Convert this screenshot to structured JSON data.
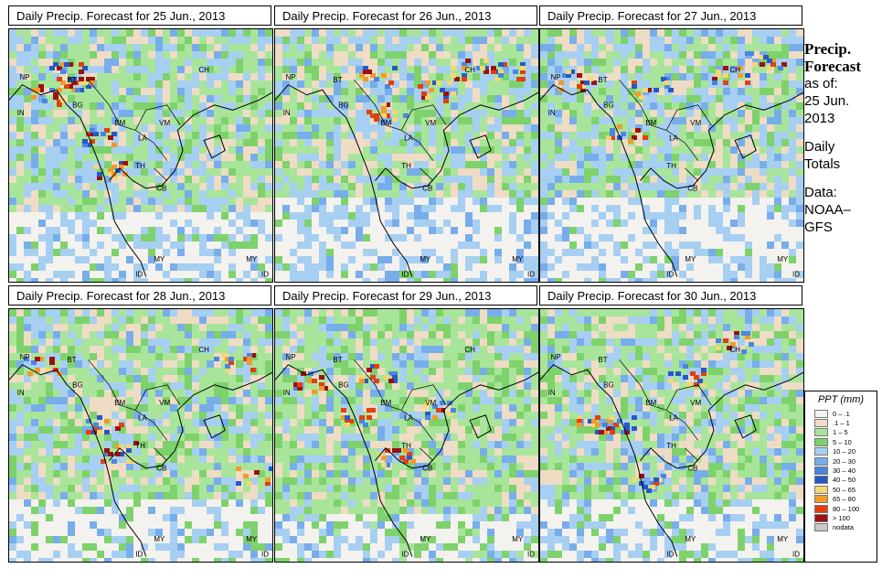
{
  "panels": [
    {
      "title": "Daily Precip. Forecast for  25 Jun., 2013",
      "heavy": [
        [
          0.25,
          0.22
        ],
        [
          0.33,
          0.42
        ],
        [
          0.38,
          0.55
        ],
        [
          0.15,
          0.25
        ],
        [
          0.22,
          0.16
        ]
      ],
      "wet": 0.55,
      "drySouth": 0.3
    },
    {
      "title": "Daily Precip. Forecast for  26 Jun., 2013",
      "heavy": [
        [
          0.72,
          0.15
        ],
        [
          0.88,
          0.16
        ],
        [
          0.38,
          0.18
        ],
        [
          0.42,
          0.32
        ],
        [
          0.6,
          0.24
        ]
      ],
      "wet": 0.5,
      "drySouth": 0.35
    },
    {
      "title": "Daily Precip. Forecast for  27 Jun., 2013",
      "heavy": [
        [
          0.72,
          0.18
        ],
        [
          0.85,
          0.12
        ],
        [
          0.12,
          0.2
        ],
        [
          0.42,
          0.22
        ],
        [
          0.32,
          0.42
        ]
      ],
      "wet": 0.5,
      "drySouth": 0.35
    },
    {
      "title": "Daily Precip. Forecast for  28 Jun., 2013",
      "heavy": [
        [
          0.85,
          0.2
        ],
        [
          0.35,
          0.45
        ],
        [
          0.4,
          0.56
        ],
        [
          0.12,
          0.22
        ],
        [
          0.93,
          0.65
        ]
      ],
      "wet": 0.62,
      "drySouth": 0.25
    },
    {
      "title": "Daily Precip. Forecast for  29 Jun., 2013",
      "heavy": [
        [
          0.3,
          0.42
        ],
        [
          0.45,
          0.58
        ],
        [
          0.12,
          0.28
        ],
        [
          0.38,
          0.25
        ],
        [
          0.6,
          0.4
        ]
      ],
      "wet": 0.7,
      "drySouth": 0.2
    },
    {
      "title": "Daily Precip. Forecast for  30 Jun., 2013",
      "heavy": [
        [
          0.2,
          0.45
        ],
        [
          0.28,
          0.45
        ],
        [
          0.55,
          0.25
        ],
        [
          0.72,
          0.12
        ],
        [
          0.42,
          0.68
        ]
      ],
      "wet": 0.62,
      "drySouth": 0.25
    }
  ],
  "map_labels": [
    "NP",
    "BT",
    "IN",
    "BG",
    "BM",
    "CH",
    "VM",
    "LA",
    "TH",
    "CB",
    "MY",
    "ID",
    "MY",
    "ID"
  ],
  "sidebar": {
    "title_line1": "Precip.",
    "title_line2": "Forecast",
    "asof_label": "as of:",
    "asof_date1": "25 Jun.",
    "asof_date2": "2013",
    "totals1": "Daily",
    "totals2": "Totals",
    "data1": "Data:",
    "data2": "NOAA–",
    "data3": "GFS"
  },
  "legend": {
    "title": "PPT (mm)",
    "items": [
      {
        "label": "0 – .1",
        "color": "#f4f2ee"
      },
      {
        "label": ".1 – 1",
        "color": "#efdcc4"
      },
      {
        "label": "1 – 5",
        "color": "#a8e59a"
      },
      {
        "label": "5 – 10",
        "color": "#7ed26b"
      },
      {
        "label": "10 – 20",
        "color": "#a6cff2"
      },
      {
        "label": "20 – 30",
        "color": "#78adeb"
      },
      {
        "label": "30 – 40",
        "color": "#4a86e0"
      },
      {
        "label": "40 – 50",
        "color": "#2658c8"
      },
      {
        "label": "50 – 65",
        "color": "#f5d774"
      },
      {
        "label": "65 – 80",
        "color": "#f29a2a"
      },
      {
        "label": "80 – 100",
        "color": "#e2400e"
      },
      {
        "label": "> 100",
        "color": "#9c1010"
      },
      {
        "label": "nodata",
        "color": "#c8c8c8"
      }
    ]
  }
}
